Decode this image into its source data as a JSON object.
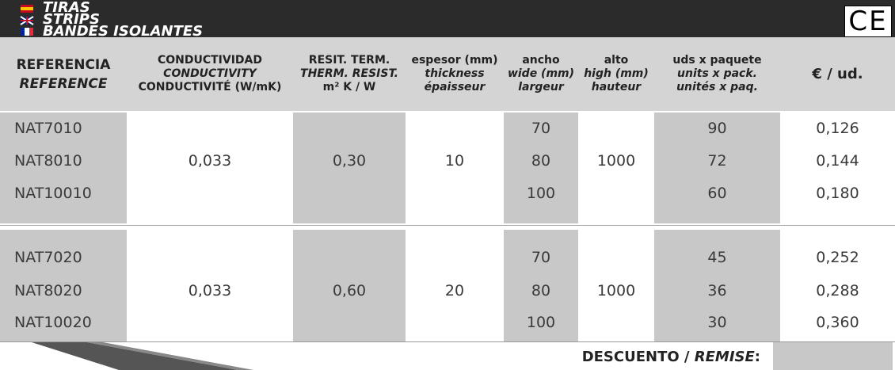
{
  "header": {
    "titles": [
      "TIRAS",
      "STRIPS",
      "BANDES ISOLANTES"
    ],
    "mark": "CE"
  },
  "columns": [
    [
      "REFERENCIA",
      "REFERENCE"
    ],
    [
      "CONDUCTIVIDAD",
      "CONDUCTIVITY",
      "CONDUCTIVITÉ (W/mK)"
    ],
    [
      "RESIT. TERM.",
      "THERM. RESIST.",
      "m² K / W"
    ],
    [
      "espesor (mm)",
      "thickness",
      "épaisseur"
    ],
    [
      "ancho",
      "wide (mm)",
      "largeur"
    ],
    [
      "alto",
      "high (mm)",
      "hauteur"
    ],
    [
      "uds x paquete",
      "units x pack.",
      "unités x paq."
    ],
    [
      "€ / ud."
    ]
  ],
  "groups": [
    {
      "conductivity": "0,033",
      "resistance": "0,30",
      "thickness": "10",
      "height": "1000",
      "rows": [
        {
          "reference": "NAT7010",
          "width": "70",
          "units": "90",
          "price": "0,126"
        },
        {
          "reference": "NAT8010",
          "width": "80",
          "units": "72",
          "price": "0,144"
        },
        {
          "reference": "NAT10010",
          "width": "100",
          "units": "60",
          "price": "0,180"
        }
      ]
    },
    {
      "conductivity": "0,033",
      "resistance": "0,60",
      "thickness": "20",
      "height": "1000",
      "rows": [
        {
          "reference": "NAT7020",
          "width": "70",
          "units": "45",
          "price": "0,252"
        },
        {
          "reference": "NAT8020",
          "width": "80",
          "units": "36",
          "price": "0,288"
        },
        {
          "reference": "NAT10020",
          "width": "100",
          "units": "30",
          "price": "0,360"
        }
      ]
    }
  ],
  "footer": {
    "label": "DESCUENTO / ",
    "label_fr": "REMISE",
    "colon": ":"
  }
}
